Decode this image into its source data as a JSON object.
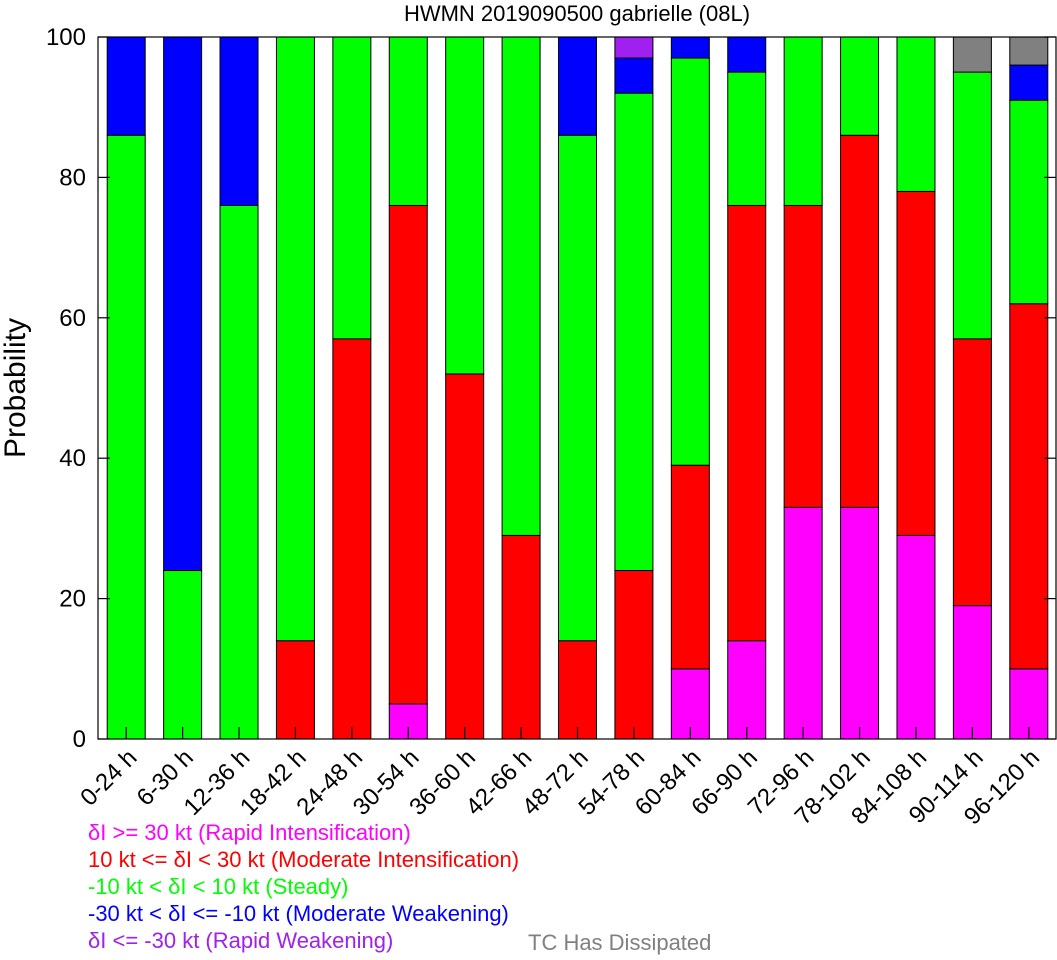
{
  "chart_data": {
    "type": "bar",
    "stacked": true,
    "title": "HWMN 2019090500 gabrielle (08L)",
    "ylabel": "Probability",
    "xlabel": "",
    "ylim": [
      0,
      100
    ],
    "yticks": [
      0,
      20,
      40,
      60,
      80,
      100
    ],
    "categories": [
      "0-24 h",
      "6-30 h",
      "12-36 h",
      "18-42 h",
      "24-48 h",
      "30-54 h",
      "36-60 h",
      "42-66 h",
      "48-72 h",
      "54-78 h",
      "60-84 h",
      "66-90 h",
      "72-96 h",
      "78-102 h",
      "84-108 h",
      "90-114 h",
      "96-120 h"
    ],
    "series": [
      {
        "name": "δI >= 30 kt (Rapid Intensification)",
        "color": "#ff00ff",
        "values": [
          0,
          0,
          0,
          0,
          0,
          5,
          0,
          0,
          0,
          0,
          10,
          14,
          33,
          33,
          29,
          19,
          10
        ]
      },
      {
        "name": "10 kt <= δI < 30 kt (Moderate Intensification)",
        "color": "#ff0000",
        "values": [
          0,
          0,
          0,
          14,
          57,
          71,
          52,
          29,
          14,
          24,
          29,
          62,
          43,
          53,
          49,
          38,
          52
        ]
      },
      {
        "name": "-10 kt < δI < 10 kt (Steady)",
        "color": "#00ff00",
        "values": [
          86,
          24,
          76,
          86,
          43,
          24,
          48,
          71,
          72,
          68,
          58,
          19,
          24,
          14,
          22,
          38,
          29
        ]
      },
      {
        "name": "-30 kt < δI <= -10 kt (Moderate Weakening)",
        "color": "#0000ff",
        "values": [
          14,
          76,
          24,
          0,
          0,
          0,
          0,
          0,
          14,
          5,
          3,
          5,
          0,
          0,
          0,
          0,
          5
        ]
      },
      {
        "name": "δI <= -30 kt (Rapid Weakening)",
        "color": "#a020f0",
        "values": [
          0,
          0,
          0,
          0,
          0,
          0,
          0,
          0,
          0,
          3,
          0,
          0,
          0,
          0,
          0,
          0,
          0
        ]
      },
      {
        "name": "TC Has Dissipated",
        "color": "#808080",
        "values": [
          0,
          0,
          0,
          0,
          0,
          0,
          0,
          0,
          0,
          0,
          0,
          0,
          0,
          0,
          0,
          5,
          4
        ]
      }
    ],
    "legend": [
      "δI >= 30 kt (Rapid Intensification)",
      "10 kt <= δI < 30 kt (Moderate Intensification)",
      "-10 kt < δI < 10 kt (Steady)",
      "-30 kt < δI <= -10 kt (Moderate Weakening)",
      "δI <= -30 kt (Rapid Weakening)",
      "TC Has Dissipated"
    ],
    "legend_placement": "bottom",
    "grid": false
  }
}
